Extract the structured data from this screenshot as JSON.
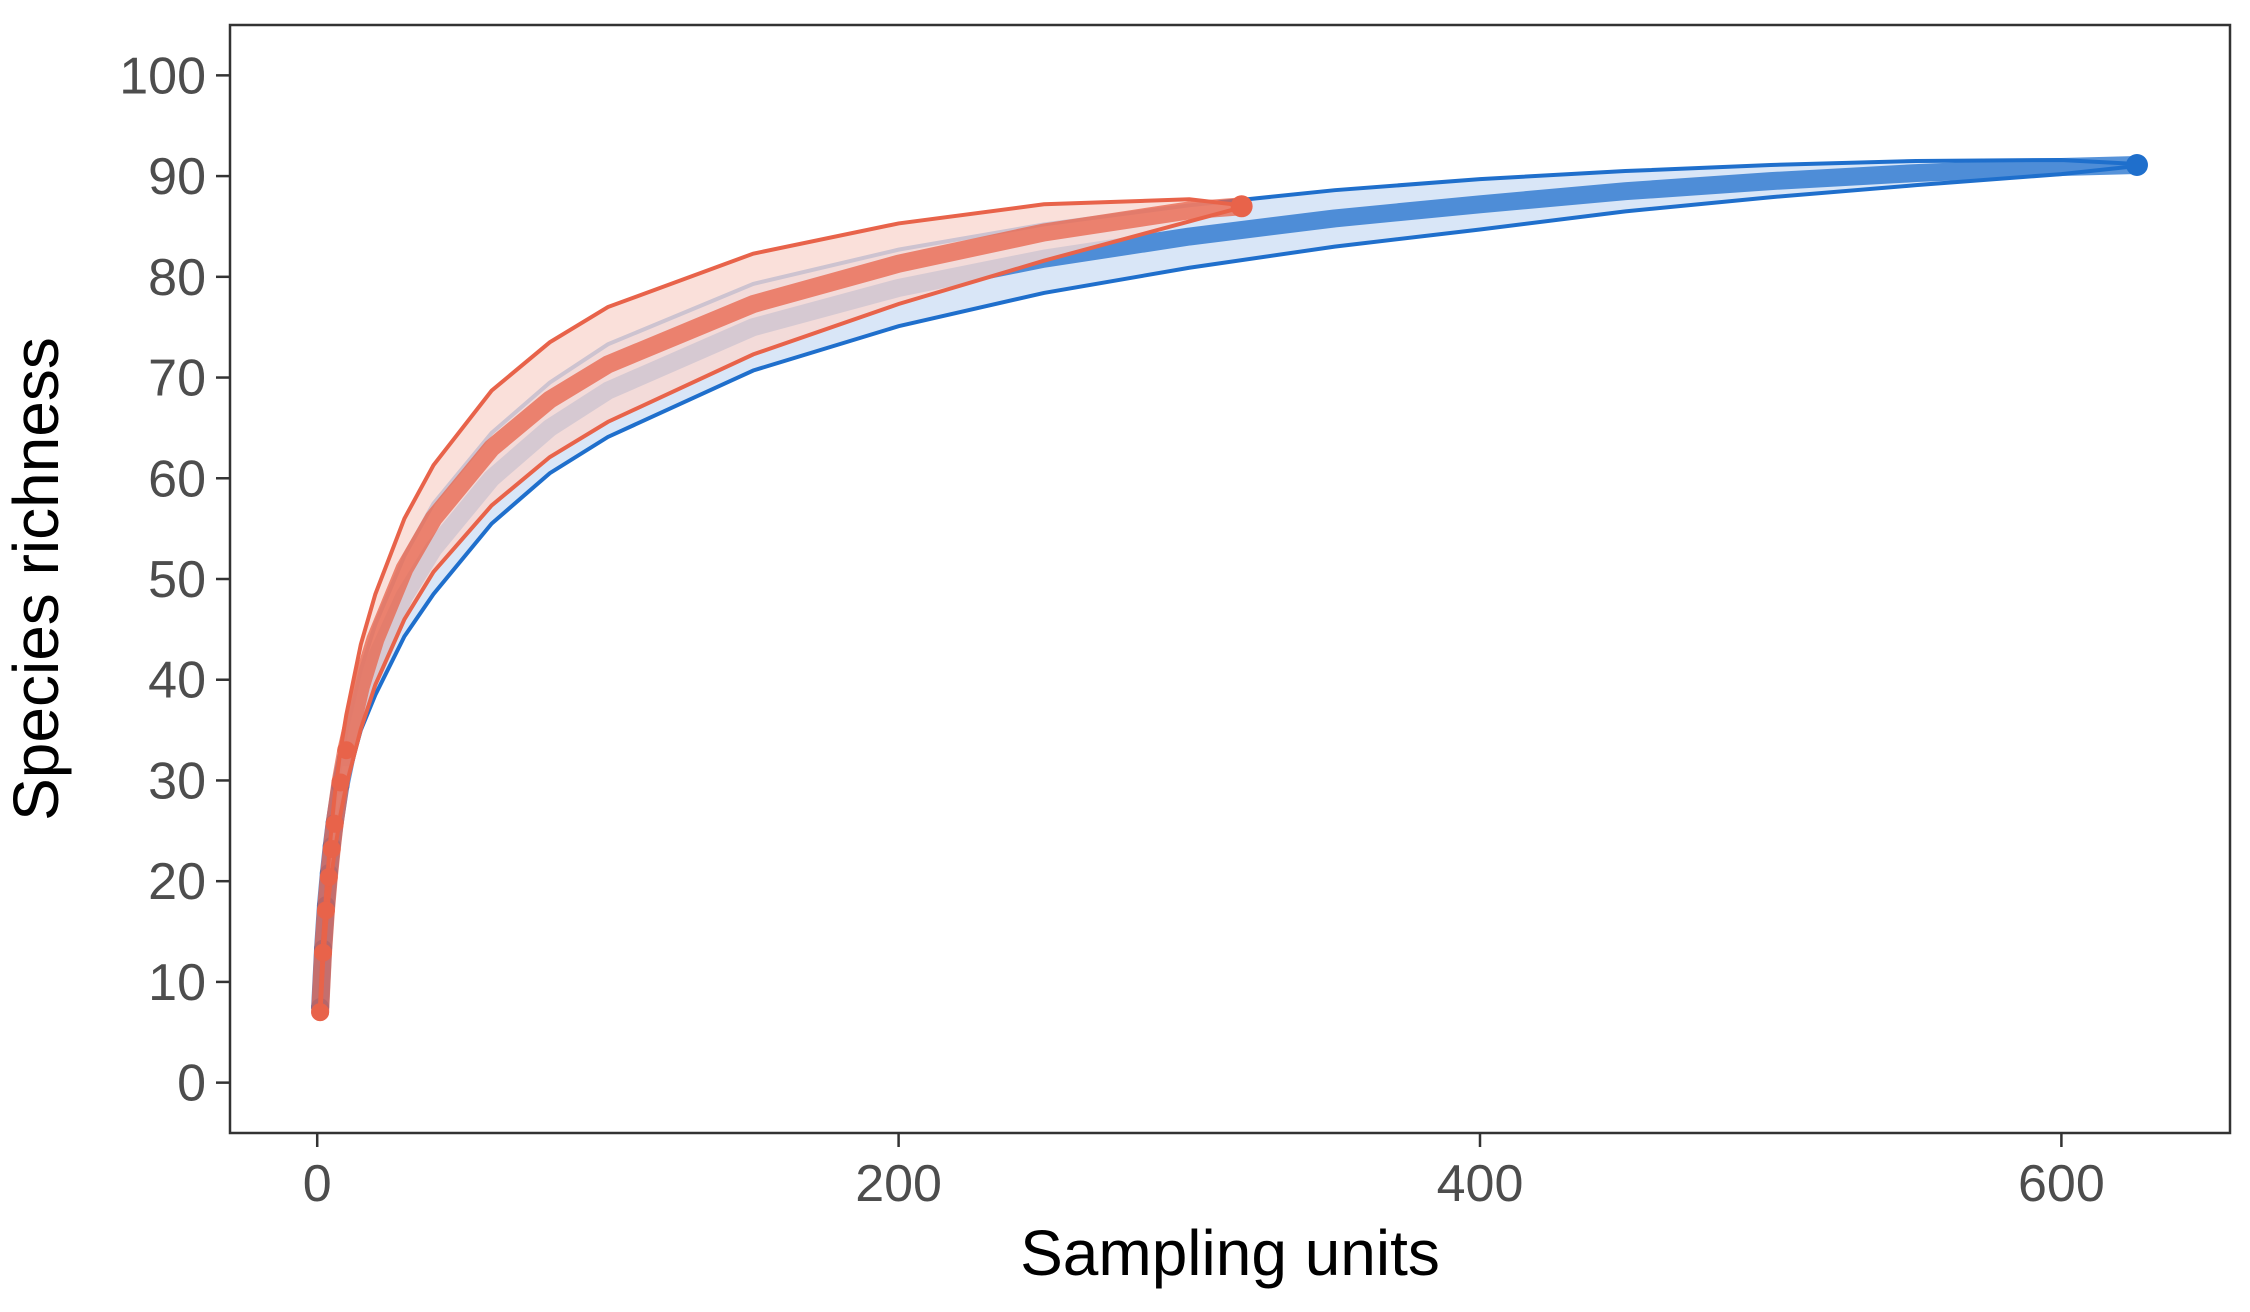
{
  "chart_data": {
    "type": "line",
    "xlabel": "Sampling units",
    "ylabel": "Species richness",
    "xlim": [
      -30,
      658
    ],
    "ylim": [
      -5,
      105
    ],
    "xticks": [
      0,
      200,
      400,
      600
    ],
    "yticks": [
      0,
      10,
      20,
      30,
      40,
      50,
      60,
      70,
      80,
      90,
      100
    ],
    "grid": false,
    "legend": "none",
    "series": [
      {
        "color": "#1f6fcc",
        "fill_color": "#cfe0f5",
        "x": [
          1,
          2,
          3,
          4,
          5,
          6,
          8,
          10,
          15,
          20,
          30,
          40,
          60,
          80,
          100,
          150,
          200,
          250,
          300,
          350,
          400,
          450,
          500,
          550,
          600,
          626
        ],
        "y": [
          7.5,
          13.3,
          17.6,
          20.8,
          23.5,
          25.8,
          29.5,
          32.3,
          38.0,
          42.0,
          48.3,
          53.0,
          60.0,
          65.0,
          68.7,
          75.0,
          78.9,
          81.8,
          84.0,
          85.8,
          87.2,
          88.5,
          89.5,
          90.3,
          90.9,
          91.1
        ],
        "upper": [
          8.0,
          14.0,
          18.5,
          22.0,
          25.0,
          27.5,
          31.5,
          34.8,
          41.0,
          45.5,
          52.3,
          57.5,
          64.5,
          69.5,
          73.3,
          79.3,
          82.7,
          85.2,
          87.1,
          88.6,
          89.7,
          90.5,
          91.1,
          91.5,
          91.6,
          91.2
        ],
        "lower": [
          7.0,
          12.6,
          16.7,
          19.6,
          22.0,
          24.1,
          27.5,
          29.8,
          35.0,
          38.5,
          44.3,
          48.5,
          55.5,
          60.5,
          64.1,
          70.7,
          75.1,
          78.4,
          80.9,
          83.0,
          84.7,
          86.5,
          87.9,
          89.1,
          90.2,
          91.0
        ]
      },
      {
        "color": "#e8634a",
        "fill_color": "#f9d8d1",
        "x": [
          1,
          2,
          3,
          4,
          5,
          6,
          8,
          10,
          15,
          20,
          30,
          40,
          60,
          80,
          100,
          150,
          200,
          250,
          300,
          318
        ],
        "y": [
          7.0,
          12.9,
          17.1,
          20.4,
          23.2,
          25.7,
          29.8,
          33.0,
          39.3,
          44.0,
          51.0,
          56.0,
          63.0,
          67.8,
          71.3,
          77.3,
          81.3,
          84.4,
          86.6,
          87.0
        ],
        "upper": [
          7.8,
          14.0,
          18.5,
          22.3,
          25.6,
          28.5,
          33.0,
          36.5,
          43.5,
          48.5,
          56.0,
          61.3,
          68.7,
          73.5,
          77.0,
          82.3,
          85.3,
          87.2,
          87.7,
          87.1
        ],
        "lower": [
          6.2,
          11.8,
          15.7,
          18.5,
          20.8,
          22.9,
          26.6,
          29.5,
          35.1,
          39.5,
          46.0,
          50.7,
          57.3,
          62.1,
          65.6,
          72.3,
          77.3,
          81.6,
          85.5,
          86.9
        ]
      }
    ]
  }
}
